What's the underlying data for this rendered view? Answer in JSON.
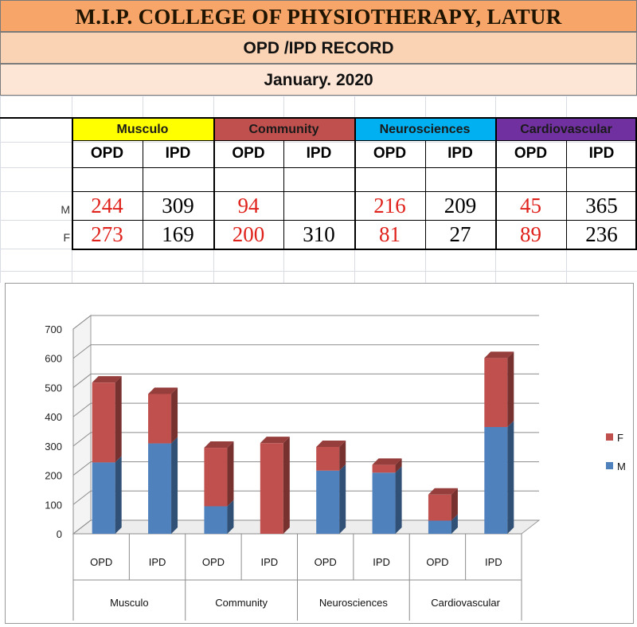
{
  "header": {
    "college": "M.I.P. COLLEGE OF PHYSIOTHERAPY, LATUR",
    "record": "OPD /IPD RECORD",
    "month": "January. 2020"
  },
  "colors": {
    "musculo": "#ffff00",
    "community": "#c0504d",
    "neurosciences": "#00b0f0",
    "cardiovascular": "#7030a0",
    "male_series": "#4f81bd",
    "female_series": "#c0504d"
  },
  "table": {
    "departments": [
      "Musculo",
      "Community",
      "Neurosciences",
      "Cardiovascular"
    ],
    "subheaders": [
      "OPD",
      "IPD",
      "OPD",
      "IPD",
      "OPD",
      "IPD",
      "OPD",
      "IPD"
    ],
    "row_labels": {
      "m": "M",
      "f": "F"
    },
    "m_values": [
      "244",
      "309",
      "94",
      "",
      "216",
      "209",
      "45",
      "365"
    ],
    "f_values": [
      "273",
      "169",
      "200",
      "310",
      "81",
      "27",
      "89",
      "236"
    ]
  },
  "chart_data": {
    "type": "bar",
    "stacked": true,
    "style": "3d-column",
    "categories": [
      "OPD",
      "IPD",
      "OPD",
      "IPD",
      "OPD",
      "IPD",
      "OPD",
      "IPD"
    ],
    "groups": [
      "Musculo",
      "Community",
      "Neurosciences",
      "Cardiovascular"
    ],
    "series": [
      {
        "name": "M",
        "values": [
          244,
          309,
          94,
          0,
          216,
          209,
          45,
          365
        ]
      },
      {
        "name": "F",
        "values": [
          273,
          169,
          200,
          310,
          81,
          27,
          89,
          236
        ]
      }
    ],
    "legend": [
      "F",
      "M"
    ],
    "legend_position": "right",
    "ylim": [
      0,
      700
    ],
    "yticks": [
      0,
      100,
      200,
      300,
      400,
      500,
      600,
      700
    ],
    "grid": true,
    "title": "",
    "xlabel": "",
    "ylabel": ""
  }
}
